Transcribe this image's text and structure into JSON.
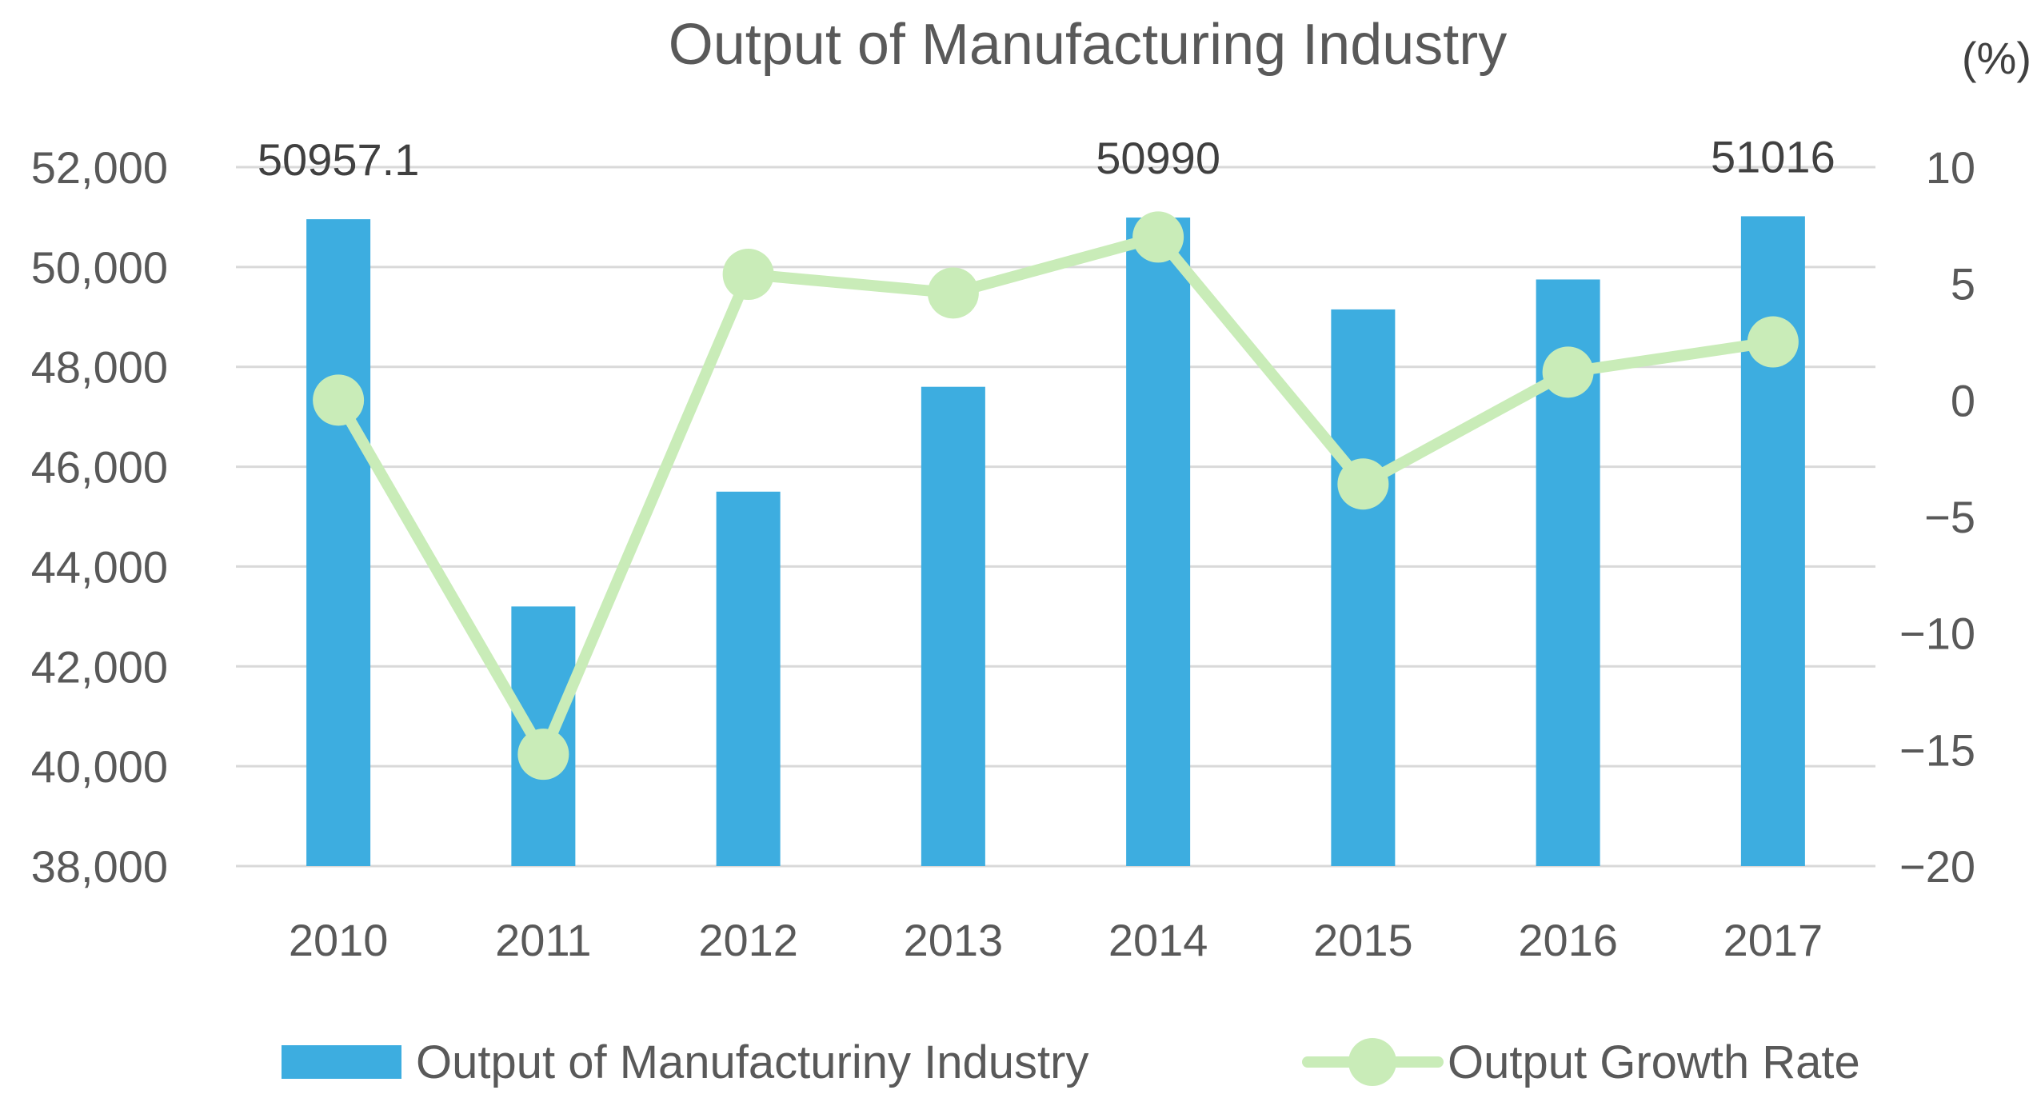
{
  "chart_data": {
    "type": "bar+line",
    "title": "Output of Manufacturing Industry",
    "categories": [
      "2010",
      "2011",
      "2012",
      "2013",
      "2014",
      "2015",
      "2016",
      "2017"
    ],
    "series": [
      {
        "name": "Output of Manufacturiny Industry",
        "type": "bar",
        "axis": "left",
        "values": [
          50957.1,
          43200,
          45500,
          47600,
          50990,
          49150,
          49750,
          51016
        ]
      },
      {
        "name": "Output Growth Rate",
        "type": "line",
        "axis": "right",
        "values": [
          0,
          -15.2,
          5.4,
          4.6,
          7.0,
          -3.6,
          1.2,
          2.5
        ]
      }
    ],
    "left_axis": {
      "ylim": [
        38000,
        52000
      ],
      "ticks": [
        "38,000",
        "40,000",
        "42,000",
        "44,000",
        "46,000",
        "48,000",
        "50,000",
        "52,000"
      ]
    },
    "right_axis": {
      "ylim": [
        -20,
        10
      ],
      "unit": "(%)",
      "ticks": [
        "−20",
        "−15",
        "−10",
        "−5",
        "0",
        "5",
        "10"
      ]
    },
    "data_labels": [
      {
        "category": "2010",
        "text": "50957.1"
      },
      {
        "category": "2014",
        "text": "50990"
      },
      {
        "category": "2017",
        "text": "51016"
      }
    ],
    "grid": true,
    "legend_position": "bottom",
    "colors": {
      "bar": "#3DADE0",
      "line": "#C9ECB8",
      "grid": "#D9D9D9",
      "text": "#595959"
    }
  }
}
